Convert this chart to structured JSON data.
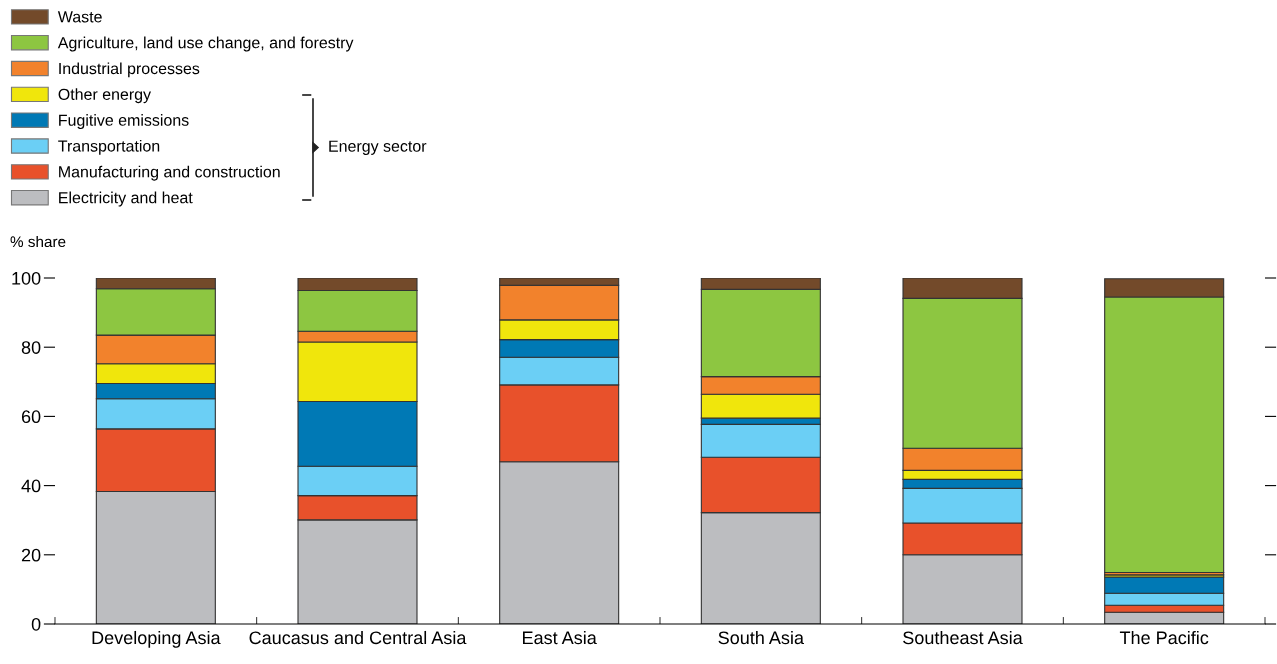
{
  "chart_data": {
    "type": "bar",
    "stacked": true,
    "ylabel": "% share",
    "categories": [
      "Developing Asia",
      "Caucasus and Central Asia",
      "East Asia",
      "South Asia",
      "Southeast Asia",
      "The Pacific"
    ],
    "series": [
      {
        "name": "Electricity and heat",
        "color": "#bcbdc0",
        "values": [
          38.3,
          30.1,
          46.9,
          32.2,
          20.0,
          3.4
        ]
      },
      {
        "name": "Manufacturing and construction",
        "color": "#e8512b",
        "values": [
          18.1,
          7.0,
          22.2,
          16.0,
          9.2,
          2.0
        ]
      },
      {
        "name": "Transportation",
        "color": "#6bcff5",
        "values": [
          8.7,
          8.5,
          8.0,
          9.5,
          10.0,
          3.5
        ]
      },
      {
        "name": "Fugitive emissions",
        "color": "#0079b5",
        "values": [
          4.4,
          18.7,
          5.1,
          1.8,
          2.6,
          4.7
        ]
      },
      {
        "name": "Other energy",
        "color": "#f0e60c",
        "values": [
          5.7,
          17.2,
          5.7,
          6.9,
          2.6,
          0.6
        ]
      },
      {
        "name": "Industrial processes",
        "color": "#f2822c",
        "values": [
          8.3,
          3.1,
          10.0,
          5.1,
          6.4,
          0.7
        ]
      },
      {
        "name": "Agriculture, land use change, and forestry",
        "color": "#8dc641",
        "values": [
          13.4,
          11.8,
          0,
          25.2,
          43.3,
          79.6
        ]
      },
      {
        "name": "Waste",
        "color": "#734a2a",
        "values": [
          3.1,
          3.6,
          2.1,
          3.3,
          5.9,
          5.3
        ]
      }
    ],
    "ylim": [
      0,
      100
    ],
    "yticks": [
      0,
      20,
      40,
      60,
      80,
      100
    ],
    "grid": false,
    "legend": "top left",
    "annotations": [
      "Energy sector"
    ]
  }
}
